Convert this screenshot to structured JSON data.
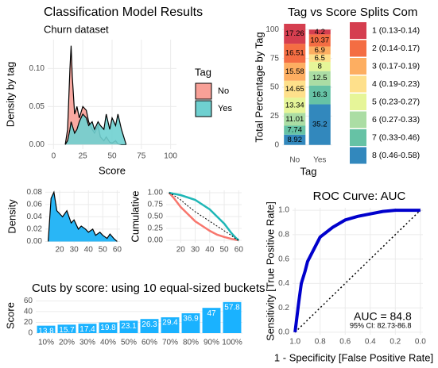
{
  "chart_data": [
    {
      "type": "area",
      "title": "Classification Model Results",
      "subtitle": "Churn dataset",
      "x_label": "Score",
      "y_label": "Density by tag",
      "legend_title": "Tag",
      "x": [
        10,
        12,
        14,
        15,
        16,
        18,
        20,
        22,
        25,
        28,
        30,
        33,
        35,
        38,
        40,
        43,
        45,
        48,
        50,
        53,
        55,
        58,
        60,
        62
      ],
      "series": [
        {
          "name": "No",
          "color": "#f8a097",
          "values": [
            0,
            0.02,
            0.1,
            0.13,
            0.09,
            0.04,
            0.05,
            0.035,
            0.05,
            0.045,
            0.03,
            0.02,
            0.015,
            0.025,
            0.01,
            0.005,
            0.01,
            0.003,
            0.002,
            0.005,
            0.001,
            0,
            0,
            0
          ]
        },
        {
          "name": "Yes",
          "color": "#6fd0d0",
          "values": [
            0,
            0.005,
            0.02,
            0.03,
            0.025,
            0.015,
            0.02,
            0.03,
            0.04,
            0.035,
            0.025,
            0.03,
            0.02,
            0.03,
            0.025,
            0.02,
            0.04,
            0.02,
            0.035,
            0.025,
            0.04,
            0.02,
            0.01,
            0
          ]
        }
      ],
      "xlim": [
        -5,
        105
      ],
      "xticks": [
        0,
        25,
        50,
        75,
        100
      ],
      "ylim": [
        -0.006,
        0.138
      ],
      "yticks": [
        {
          "value": 0,
          "label": "0.00"
        },
        {
          "value": 0.05,
          "label": "0.05"
        },
        {
          "value": 0.1,
          "label": "0.10"
        }
      ],
      "grid": true
    },
    {
      "type": "stacked_bar",
      "title": "Tag vs Score Splits Com",
      "x_label": "Tag",
      "y_label": "Total Percentage by Tag",
      "categories": [
        "No",
        "Yes"
      ],
      "series": [
        {
          "name": "1 (0.13-0.14)",
          "color": "#d53e4f",
          "values": [
            17.26,
            4.2
          ]
        },
        {
          "name": "2 (0.14-0.17)",
          "color": "#f46d43",
          "values": [
            16.51,
            10.37
          ]
        },
        {
          "name": "3 (0.17-0.19)",
          "color": "#fdae61",
          "values": [
            15.58,
            6.9
          ]
        },
        {
          "name": "4 (0.19-0.23)",
          "color": "#fee08b",
          "values": [
            14.65,
            6.5
          ]
        },
        {
          "name": "5 (0.23-0.27)",
          "color": "#e6f598",
          "values": [
            13.34,
            8
          ]
        },
        {
          "name": "6 (0.27-0.33)",
          "color": "#abdda4",
          "values": [
            11.01,
            12.5
          ]
        },
        {
          "name": "7 (0.33-0.46)",
          "color": "#66c2a5",
          "values": [
            7.74,
            16.3
          ]
        },
        {
          "name": "8 (0.46-0.58)",
          "color": "#3288bd",
          "values": [
            8.92,
            35.2
          ]
        }
      ],
      "ylim": [
        -5,
        105
      ],
      "yticks": [
        0,
        25,
        50,
        75,
        100
      ],
      "grid": true
    },
    {
      "type": "area",
      "y_label": "Density",
      "x": [
        12,
        14,
        16,
        18,
        20,
        22,
        25,
        28,
        30,
        33,
        35,
        38,
        40,
        43,
        45,
        48,
        50,
        53,
        55,
        58,
        60
      ],
      "series": [
        {
          "color": "#29b6f6",
          "values": [
            0,
            0.07,
            0.08,
            0.05,
            0.045,
            0.04,
            0.05,
            0.03,
            0.035,
            0.02,
            0.025,
            0.02,
            0.015,
            0.02,
            0.01,
            0.015,
            0.01,
            0.005,
            0.012,
            0.004,
            0
          ]
        }
      ],
      "xlim": [
        10,
        62
      ],
      "xticks": [
        20,
        30,
        40,
        50,
        60
      ],
      "ylim": [
        -0.002,
        0.083
      ],
      "yticks": [
        {
          "value": 0,
          "label": "0.00"
        },
        {
          "value": 0.02,
          "label": "0.02"
        },
        {
          "value": 0.04,
          "label": "0.04"
        },
        {
          "value": 0.06,
          "label": "0.06"
        },
        {
          "value": 0.08,
          "label": "0.08"
        }
      ],
      "grid": true
    },
    {
      "type": "line",
      "y_label": "Cumulative",
      "x": [
        12,
        15,
        20,
        25,
        30,
        35,
        40,
        45,
        50,
        55,
        58,
        60
      ],
      "series": [
        {
          "color": "#f8766d",
          "width": 2.5,
          "values": [
            1,
            0.9,
            0.7,
            0.55,
            0.4,
            0.3,
            0.2,
            0.12,
            0.07,
            0.03,
            0.01,
            0
          ]
        },
        {
          "color": "#1fb7b7",
          "width": 2.5,
          "values": [
            1,
            0.98,
            0.95,
            0.9,
            0.85,
            0.75,
            0.65,
            0.5,
            0.35,
            0.15,
            0.05,
            0
          ]
        },
        {
          "color": "#000000",
          "width": 1,
          "dash": true,
          "values": [
            1,
            0.95,
            0.85,
            0.72,
            0.6,
            0.5,
            0.4,
            0.3,
            0.2,
            0.1,
            0.03,
            0
          ]
        }
      ],
      "xlim": [
        10,
        62
      ],
      "xticks": [
        20,
        30,
        40,
        50,
        60
      ],
      "ylim": [
        -0.05,
        1.05
      ],
      "yticks": [
        {
          "value": 0,
          "label": "0.00"
        },
        {
          "value": 0.25,
          "label": "0.25"
        },
        {
          "value": 0.5,
          "label": "0.50"
        },
        {
          "value": 0.75,
          "label": "0.75"
        },
        {
          "value": 1,
          "label": "1.00"
        }
      ],
      "grid": true
    },
    {
      "type": "bar",
      "title": "Cuts by score: using 10 equal-sized buckets",
      "y_label": "Score",
      "color": "#1ab2ff",
      "categories": [
        "10%",
        "20%",
        "30%",
        "40%",
        "50%",
        "60%",
        "70%",
        "80%",
        "90%",
        "100%"
      ],
      "values": [
        13.8,
        15.7,
        17.4,
        19.8,
        23.1,
        26.3,
        29.4,
        36.9,
        47,
        57.8
      ],
      "ylim": [
        0,
        65
      ],
      "yticks": [
        0,
        20,
        40,
        60
      ],
      "grid": true
    },
    {
      "type": "line",
      "title": "ROC Curve: AUC",
      "x_label": "1 - Specificity [False Positive Rate]",
      "y_label": "Sensitivity [True Positive Rate]",
      "annotations": [
        {
          "text": "AUC = 84.8"
        },
        {
          "text": "95% CI: 82.73-86.8"
        }
      ],
      "x": [
        1,
        0.97,
        0.95,
        0.92,
        0.9,
        0.85,
        0.8,
        0.7,
        0.6,
        0.5,
        0.4,
        0.3,
        0.2,
        0.1,
        0
      ],
      "series": [
        {
          "color": "#0000cc",
          "width": 4,
          "values": [
            0,
            0.25,
            0.4,
            0.5,
            0.58,
            0.68,
            0.78,
            0.86,
            0.92,
            0.95,
            0.97,
            0.99,
            1,
            1,
            1
          ]
        }
      ],
      "xlim": [
        1.02,
        -0.02
      ],
      "xticks": [
        {
          "value": 1,
          "label": "1.0"
        },
        {
          "value": 0.8,
          "label": "0.8"
        },
        {
          "value": 0.6,
          "label": "0.6"
        },
        {
          "value": 0.4,
          "label": "0.4"
        },
        {
          "value": 0.2,
          "label": "0.2"
        },
        {
          "value": 0,
          "label": "0.0"
        }
      ],
      "ylim": [
        -0.02,
        1.02
      ],
      "yticks": [
        {
          "value": 0,
          "label": "0.0"
        },
        {
          "value": 0.2,
          "label": "0.2"
        },
        {
          "value": 0.4,
          "label": "0.4"
        },
        {
          "value": 0.6,
          "label": "0.6"
        },
        {
          "value": 0.8,
          "label": "0.8"
        },
        {
          "value": 1,
          "label": "1.0"
        }
      ],
      "grid": true
    }
  ]
}
